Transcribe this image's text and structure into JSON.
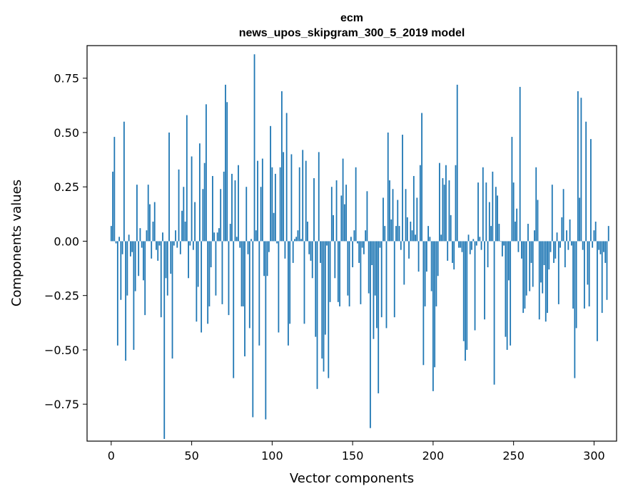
{
  "chart_data": {
    "type": "bar",
    "title": "ecm",
    "subtitle": "news_upos_skipgram_300_5_2019 model",
    "xlabel": "Vector components",
    "ylabel": "Components values",
    "xlim": [
      -15,
      314
    ],
    "ylim": [
      -0.92,
      0.9
    ],
    "xticks": [
      0,
      50,
      100,
      150,
      200,
      250,
      300
    ],
    "yticks": [
      0.75,
      0.5,
      0.25,
      0.0,
      -0.25,
      -0.5,
      -0.75
    ],
    "xtick_labels": [
      "0",
      "50",
      "100",
      "150",
      "200",
      "250",
      "300"
    ],
    "ytick_labels": [
      "0.75",
      "0.50",
      "0.25",
      "0.00",
      "−0.25",
      "−0.50",
      "−0.75"
    ],
    "grid": false,
    "bar_color": "#1f77b4",
    "values": [
      0.07,
      0.32,
      0.48,
      -0.01,
      -0.48,
      0.02,
      -0.27,
      -0.06,
      0.55,
      -0.55,
      -0.25,
      0.03,
      -0.07,
      -0.05,
      -0.5,
      -0.23,
      0.26,
      -0.16,
      0.06,
      -0.03,
      -0.18,
      -0.34,
      0.05,
      0.26,
      0.17,
      -0.08,
      0.09,
      0.18,
      -0.04,
      -0.09,
      -0.02,
      -0.35,
      0.04,
      -0.91,
      -0.17,
      -0.25,
      0.5,
      -0.15,
      -0.54,
      -0.02,
      0.05,
      -0.03,
      0.33,
      -0.06,
      0.14,
      0.25,
      0.09,
      0.58,
      -0.17,
      -0.02,
      0.39,
      -0.04,
      0.18,
      -0.37,
      -0.21,
      0.45,
      -0.42,
      0.24,
      0.36,
      0.63,
      -0.38,
      -0.3,
      -0.12,
      0.3,
      0.04,
      -0.25,
      0.04,
      0.06,
      0.24,
      -0.29,
      0.32,
      0.72,
      0.64,
      -0.34,
      0.08,
      0.31,
      -0.63,
      0.28,
      0.02,
      0.35,
      -0.03,
      -0.3,
      -0.3,
      -0.53,
      0.25,
      -0.06,
      -0.4,
      0.01,
      -0.81,
      0.86,
      0.05,
      0.37,
      -0.48,
      0.25,
      0.38,
      -0.16,
      -0.82,
      -0.16,
      -0.05,
      0.53,
      0.34,
      0.13,
      0.31,
      -0.01,
      -0.42,
      0.34,
      0.69,
      0.41,
      -0.08,
      0.59,
      -0.48,
      -0.38,
      0.4,
      -0.1,
      0.01,
      0.02,
      0.05,
      0.34,
      0.01,
      0.42,
      -0.38,
      0.37,
      0.09,
      -0.06,
      -0.09,
      -0.17,
      0.29,
      -0.44,
      -0.68,
      0.41,
      -0.1,
      -0.54,
      -0.6,
      -0.43,
      -0.02,
      -0.63,
      -0.28,
      0.25,
      0.12,
      -0.17,
      0.28,
      -0.28,
      -0.3,
      0.21,
      0.38,
      0.17,
      0.26,
      -0.25,
      -0.3,
      0.02,
      -0.12,
      0.05,
      0.34,
      -0.01,
      -0.1,
      -0.29,
      -0.03,
      -0.06,
      0.05,
      0.23,
      -0.24,
      -0.86,
      -0.11,
      -0.45,
      -0.25,
      -0.4,
      -0.7,
      -0.03,
      -0.35,
      0.2,
      0.07,
      -0.4,
      0.5,
      0.28,
      0.1,
      0.24,
      -0.35,
      0.07,
      0.19,
      0.07,
      -0.04,
      0.49,
      -0.2,
      0.24,
      0.11,
      -0.08,
      0.09,
      0.05,
      0.3,
      0.03,
      0.2,
      -0.14,
      0.35,
      0.59,
      -0.57,
      -0.3,
      -0.14,
      0.07,
      0.02,
      -0.23,
      -0.69,
      -0.58,
      -0.3,
      -0.16,
      0.36,
      0.03,
      0.29,
      0.26,
      0.35,
      -0.09,
      0.28,
      0.12,
      -0.1,
      -0.13,
      0.35,
      0.72,
      -0.03,
      -0.03,
      -0.05,
      -0.46,
      -0.55,
      -0.5,
      0.03,
      -0.06,
      -0.04,
      0.01,
      -0.41,
      -0.02,
      0.27,
      0.02,
      -0.04,
      0.34,
      -0.36,
      0.27,
      -0.12,
      0.18,
      0.07,
      0.32,
      -0.66,
      0.25,
      0.21,
      0.08,
      0.0,
      -0.07,
      -0.02,
      -0.44,
      -0.5,
      -0.18,
      -0.48,
      0.48,
      0.27,
      0.09,
      0.15,
      -0.05,
      0.71,
      -0.08,
      -0.33,
      -0.31,
      -0.25,
      0.08,
      -0.23,
      -0.1,
      -0.21,
      0.05,
      0.34,
      0.19,
      -0.36,
      -0.19,
      -0.24,
      -0.11,
      -0.37,
      -0.33,
      -0.13,
      -0.05,
      0.26,
      -0.1,
      -0.08,
      0.04,
      -0.29,
      -0.03,
      0.11,
      0.24,
      -0.12,
      0.05,
      -0.04,
      0.1,
      -0.02,
      -0.31,
      -0.63,
      -0.4,
      0.69,
      0.2,
      0.66,
      -0.04,
      -0.31,
      0.55,
      -0.2,
      -0.3,
      0.47,
      -0.03,
      0.05,
      0.09,
      -0.46,
      -0.04,
      -0.06,
      -0.33,
      -0.05,
      -0.1,
      -0.27,
      0.07
    ]
  }
}
